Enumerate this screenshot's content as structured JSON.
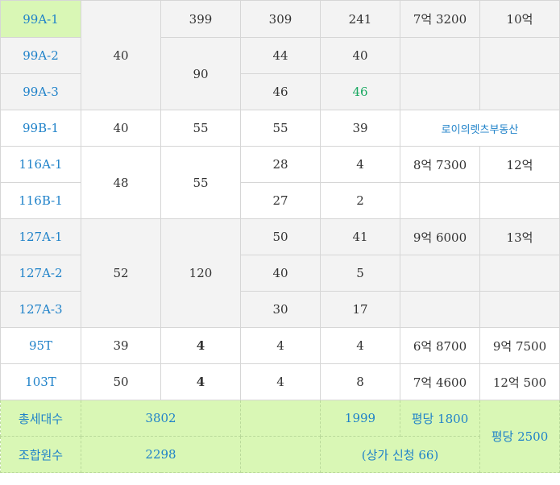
{
  "rows": [
    {
      "type": "99A-1",
      "c1": "",
      "c2": "399",
      "c3": "309",
      "c4": "241",
      "c5": "7억 3200",
      "c6": "10억"
    },
    {
      "type": "99A-2",
      "c1": "40",
      "c2": "90",
      "c3": "44",
      "c4": "40",
      "c5": "",
      "c6": ""
    },
    {
      "type": "99A-3",
      "c3": "46",
      "c4": "46",
      "c5": "",
      "c6": ""
    },
    {
      "type": "99B-1",
      "c1": "40",
      "c2": "55",
      "c3": "55",
      "c4": "39",
      "agent": "로이의렛츠부동산"
    },
    {
      "type": "116A-1",
      "c1": "48",
      "c2": "55",
      "c3": "28",
      "c4": "4",
      "c5": "8억 7300",
      "c6": "12억"
    },
    {
      "type": "116B-1",
      "c3": "27",
      "c4": "2",
      "c5": "",
      "c6": ""
    },
    {
      "type": "127A-1",
      "c1": "52",
      "c2": "120",
      "c3": "50",
      "c4": "41",
      "c5": "9억 6000",
      "c6": "13억"
    },
    {
      "type": "127A-2",
      "c3": "40",
      "c4": "5",
      "c5": "",
      "c6": ""
    },
    {
      "type": "127A-3",
      "c3": "30",
      "c4": "17",
      "c5": "",
      "c6": ""
    },
    {
      "type": "95T",
      "c1": "39",
      "c2": "4",
      "c3": "4",
      "c4": "4",
      "c5": "6억 8700",
      "c6": "9억 7500"
    },
    {
      "type": "103T",
      "c1": "50",
      "c2": "4",
      "c3": "4",
      "c4": "8",
      "c5": "7억 4600",
      "c6": "12억 500"
    }
  ],
  "summary": {
    "total_label": "총세대수",
    "total_value": "3802",
    "total_extra": "1999",
    "price_per_pyeong_1": "평당 1800",
    "price_per_pyeong_2": "평당 2500",
    "members_label": "조합원수",
    "members_value": "2298",
    "commercial_note": "(상가 신청 66)"
  },
  "colors": {
    "type_text": "#1f82c9",
    "highlight_bg": "#d9f7b5",
    "gray_bg": "#f3f3f3",
    "green_text": "#18a860"
  }
}
